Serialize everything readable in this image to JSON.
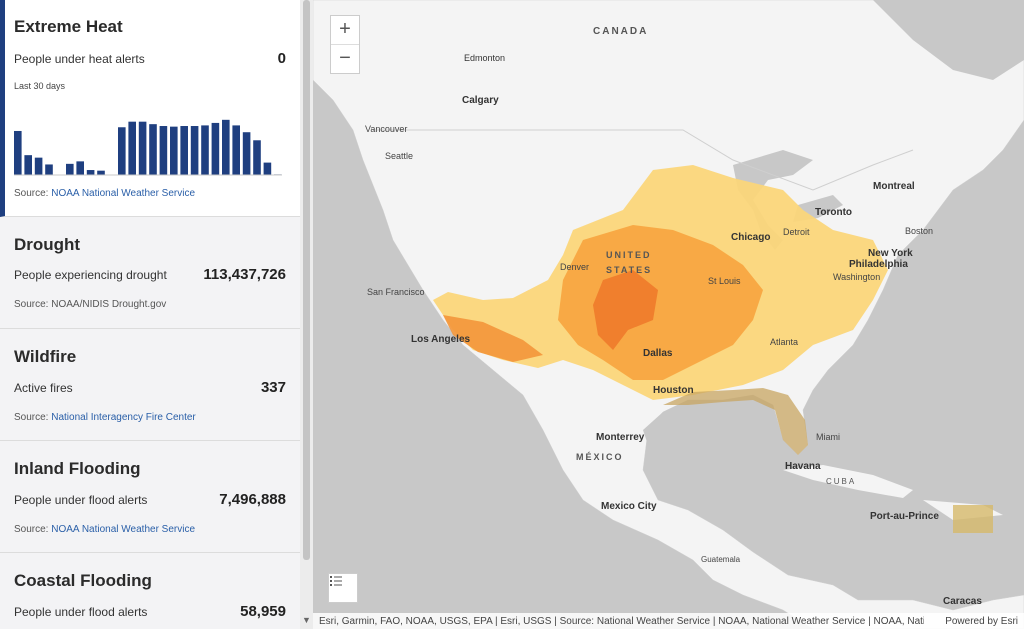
{
  "cards": [
    {
      "title": "Extreme Heat",
      "metric_label": "People under heat alerts",
      "metric_value": "0",
      "chart_subtitle": "Last 30 days",
      "source_prefix": "Source: ",
      "source_link": "NOAA National Weather Service"
    },
    {
      "title": "Drought",
      "metric_label": "People experiencing drought",
      "metric_value": "113,437,726",
      "source_prefix": "Source: ",
      "source_text": "NOAA/NIDIS Drought.gov"
    },
    {
      "title": "Wildfire",
      "metric_label": "Active fires",
      "metric_value": "337",
      "source_prefix": "Source: ",
      "source_link": "National Interagency Fire Center"
    },
    {
      "title": "Inland Flooding",
      "metric_label": "People under flood alerts",
      "metric_value": "7,496,888",
      "source_prefix": "Source: ",
      "source_link": "NOAA National Weather Service"
    },
    {
      "title": "Coastal Flooding",
      "metric_label": "People under flood alerts",
      "metric_value": "58,959"
    }
  ],
  "chart_data": {
    "type": "bar",
    "values": [
      0.71,
      0.32,
      0.28,
      0.17,
      0,
      0.18,
      0.22,
      0.08,
      0.07,
      0,
      0.77,
      0.86,
      0.86,
      0.82,
      0.79,
      0.78,
      0.79,
      0.79,
      0.8,
      0.84,
      0.89,
      0.8,
      0.69,
      0.56,
      0.2,
      0.01
    ],
    "color": "#1f3f80",
    "note": ""
  },
  "map": {
    "zoom_in": "+",
    "zoom_out": "−",
    "labels": {
      "canada": "CANADA",
      "edmonton": "Edmonton",
      "calgary": "Calgary",
      "vancouver": "Vancouver",
      "seattle": "Seattle",
      "montreal": "Montreal",
      "toronto": "Toronto",
      "boston": "Boston",
      "new_york": "New York",
      "philadelphia": "Philadelphia",
      "washington": "Washington",
      "detroit": "Detroit",
      "chicago": "Chicago",
      "united": "UNITED",
      "states": "STATES",
      "st_louis": "St Louis",
      "denver": "Denver",
      "san_francisco": "San Francisco",
      "los_angeles": "Los Angeles",
      "dallas": "Dallas",
      "atlanta": "Atlanta",
      "houston": "Houston",
      "miami": "Miami",
      "monterrey": "Monterrey",
      "mexico": "MÉXICO",
      "havana": "Havana",
      "cuba": "CUBA",
      "mexico_city": "Mexico City",
      "port_au_prince": "Port-au-Prince",
      "guatemala": "Guatemala",
      "caracas": "Caracas"
    },
    "attribution": "Esri, Garmin, FAO, NOAA, USGS, EPA | Esri, USGS | Source: National Weather Service | NOAA, National Weather Service | NOAA, National Weather Service | Esri",
    "powered_by": "Powered by Esri"
  },
  "colors": {
    "accent": "#1f3f80",
    "heat_light": "#fbd67a",
    "heat_mid": "#f7a540",
    "heat_dark": "#ee7a2a",
    "flood_coastal": "#c8a662"
  }
}
